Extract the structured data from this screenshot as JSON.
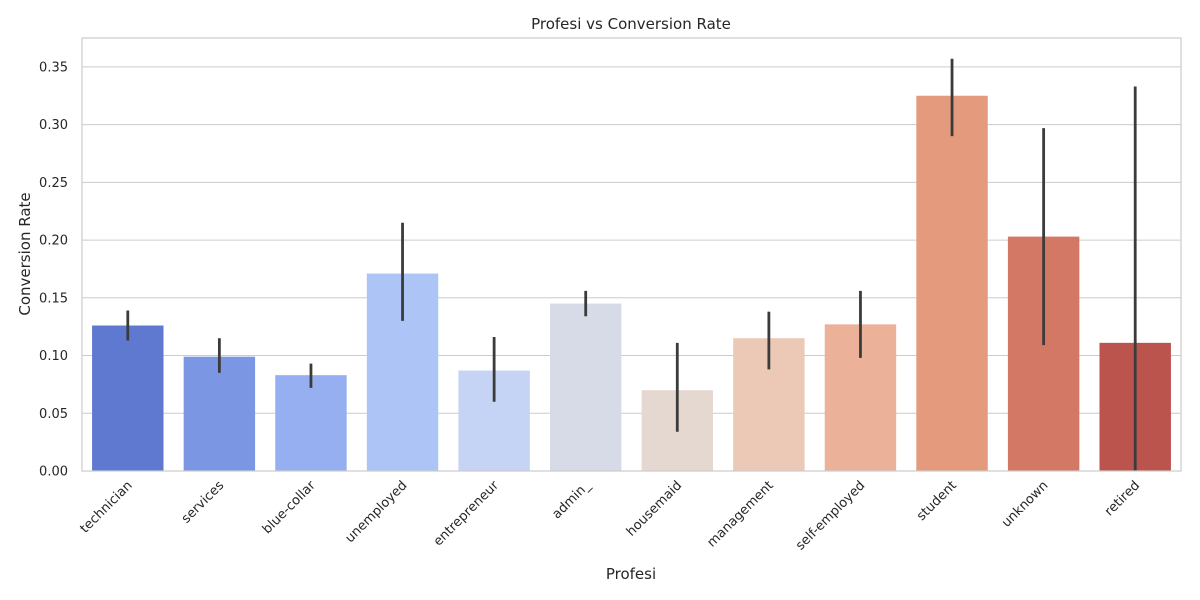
{
  "chart_data": {
    "type": "bar",
    "title": "Profesi vs Conversion Rate",
    "xlabel": "Profesi",
    "ylabel": "Conversion Rate",
    "ylim": [
      0,
      0.375
    ],
    "yticks": [
      "0.00",
      "0.05",
      "0.10",
      "0.15",
      "0.20",
      "0.25",
      "0.30",
      "0.35"
    ],
    "grid": true,
    "categories": [
      "technician",
      "services",
      "blue-collar",
      "unemployed",
      "entrepreneur",
      "admin_",
      "housemaid",
      "management",
      "self-employed",
      "student",
      "unknown",
      "retired"
    ],
    "values": [
      0.126,
      0.099,
      0.083,
      0.171,
      0.087,
      0.145,
      0.07,
      0.115,
      0.127,
      0.325,
      0.203,
      0.111
    ],
    "ci_low": [
      0.113,
      0.085,
      0.072,
      0.13,
      0.06,
      0.134,
      0.034,
      0.088,
      0.098,
      0.29,
      0.109,
      0.0
    ],
    "ci_high": [
      0.139,
      0.115,
      0.093,
      0.215,
      0.116,
      0.156,
      0.111,
      0.138,
      0.156,
      0.357,
      0.297,
      0.333
    ],
    "colors": [
      "#5f79d1",
      "#7b96e3",
      "#96aff0",
      "#adc4f7",
      "#c5d4f4",
      "#d6dbe7",
      "#e5d8d1",
      "#ecc9b7",
      "#ebb199",
      "#e39a7d",
      "#d47866",
      "#bb544d"
    ],
    "errorbar_color": "#3b3b3b"
  }
}
